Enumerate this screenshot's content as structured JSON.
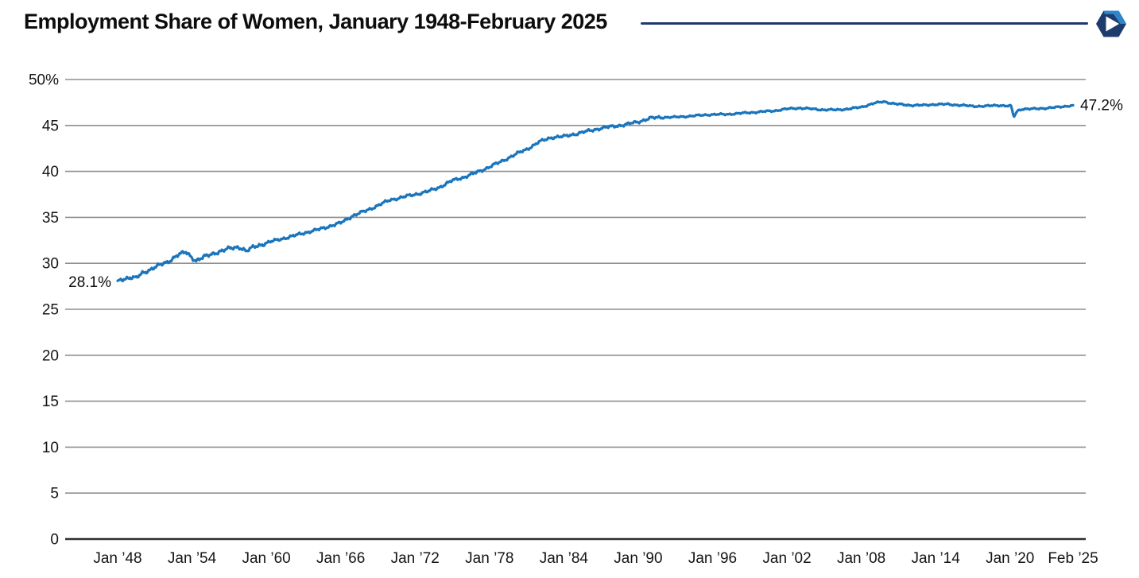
{
  "header": {
    "title": "Employment Share of Women, January 1948-February 2025",
    "divider_color": "#1e3a6d",
    "logo_icon": "hexagon-pinwheel-logo-icon",
    "logo_navy": "#1d3c6e",
    "logo_blue": "#2e86c9"
  },
  "chart_data": {
    "type": "line",
    "title": "Employment Share of Women, January 1948-February 2025",
    "series_name": "Employment share of women (%)",
    "unit": "%",
    "ylim": [
      0,
      50
    ],
    "xlim": [
      1948,
      2025.083
    ],
    "grid": true,
    "line_color": "#1a75bc",
    "grid_color": "#8f8f8f",
    "axis_color": "#2f2f2f",
    "y_ticks": [
      0,
      5,
      10,
      15,
      20,
      25,
      30,
      35,
      40,
      45,
      50
    ],
    "y_tick_labels": [
      "0",
      "5",
      "10",
      "15",
      "20",
      "25",
      "30",
      "35",
      "40",
      "45",
      "50%"
    ],
    "x_tick_years": [
      1948,
      1954,
      1960,
      1966,
      1972,
      1978,
      1984,
      1990,
      1996,
      2002,
      2008,
      2014,
      2020,
      2025.083
    ],
    "x_tick_labels": [
      "Jan ’48",
      "Jan ’54",
      "Jan ’60",
      "Jan ’66",
      "Jan ’72",
      "Jan ’78",
      "Jan ’84",
      "Jan ’90",
      "Jan ’96",
      "Jan ’02",
      "Jan ’08",
      "Jan ’14",
      "Jan ’20",
      "Feb ’25"
    ],
    "start_annotation": "28.1%",
    "end_annotation": "47.2%",
    "anchor_points": {
      "note": "monthly series approximated from these (year, percent) anchors",
      "x": [
        1948,
        1948.5,
        1949,
        1949.5,
        1950,
        1951,
        1952,
        1952.8,
        1953.5,
        1954.3,
        1955,
        1956,
        1957,
        1957.8,
        1958.4,
        1959,
        1960,
        1961,
        1962,
        1963,
        1964,
        1965,
        1966,
        1967,
        1968,
        1969,
        1970,
        1971,
        1972,
        1973,
        1974,
        1975,
        1976,
        1977,
        1978,
        1979,
        1980,
        1981,
        1982,
        1983,
        1984,
        1985,
        1986,
        1987,
        1988,
        1989,
        1990,
        1991,
        1992,
        1993,
        1994,
        1995,
        1996,
        1997,
        1998,
        1999,
        2000,
        2001,
        2002,
        2003,
        2004,
        2005,
        2006,
        2007,
        2008,
        2009,
        2009.8,
        2010.5,
        2011,
        2012,
        2013,
        2014,
        2015,
        2016,
        2017,
        2018,
        2019,
        2020.1,
        2020.3,
        2020.6,
        2021,
        2022,
        2023,
        2024,
        2025.083
      ],
      "y": [
        28.1,
        28.3,
        28.5,
        28.4,
        28.9,
        29.6,
        30.1,
        30.9,
        31.2,
        30.3,
        30.7,
        31.2,
        31.6,
        31.8,
        31.3,
        31.8,
        32.2,
        32.6,
        32.9,
        33.3,
        33.6,
        34.0,
        34.4,
        35.2,
        35.7,
        36.3,
        36.9,
        37.2,
        37.5,
        37.8,
        38.3,
        39.0,
        39.4,
        39.9,
        40.5,
        41.1,
        41.8,
        42.4,
        43.2,
        43.7,
        43.8,
        44.1,
        44.4,
        44.7,
        44.9,
        45.1,
        45.4,
        45.8,
        45.9,
        45.9,
        46.0,
        46.1,
        46.2,
        46.2,
        46.3,
        46.4,
        46.5,
        46.6,
        46.8,
        46.9,
        46.8,
        46.7,
        46.7,
        46.8,
        47.0,
        47.4,
        47.6,
        47.4,
        47.3,
        47.2,
        47.2,
        47.3,
        47.3,
        47.2,
        47.1,
        47.1,
        47.2,
        47.1,
        45.9,
        46.6,
        46.8,
        46.8,
        46.9,
        47.0,
        47.2
      ]
    }
  }
}
